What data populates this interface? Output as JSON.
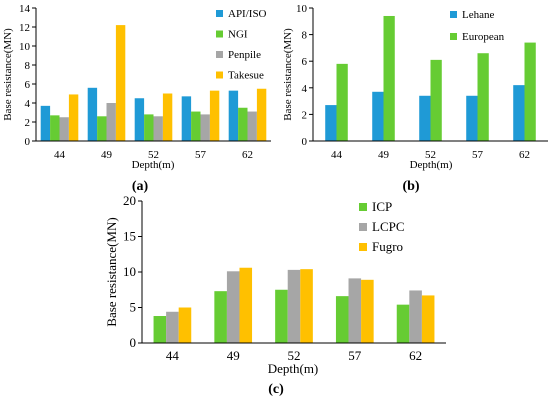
{
  "figure": {
    "panel_labels": [
      "(a)",
      "(b)",
      "(c)"
    ]
  },
  "colors": {
    "API/ISO": "#1f9ad6",
    "NGI": "#66cc33",
    "Penpile": "#a6a6a6",
    "Takesue": "#ffc000",
    "Lehane": "#1f9ad6",
    "European": "#66cc33",
    "ICP": "#66cc33",
    "LCPC": "#a6a6a6",
    "Fugro": "#ffc000",
    "axis": "#000000",
    "background": "#ffffff"
  },
  "chart_data": [
    {
      "type": "bar",
      "panel": "(a)",
      "xlabel": "Depth(m)",
      "ylabel": "Base resistance(MN)",
      "categories": [
        "44",
        "49",
        "52",
        "57",
        "62"
      ],
      "ylim": [
        0,
        14
      ],
      "yticks": [
        0,
        2,
        4,
        6,
        8,
        10,
        12,
        14
      ],
      "grid": false,
      "legend_position": "top-right",
      "series": [
        {
          "name": "API/ISO",
          "values": [
            3.7,
            5.6,
            4.5,
            4.7,
            5.3
          ]
        },
        {
          "name": "NGI",
          "values": [
            2.7,
            2.6,
            2.8,
            3.1,
            3.5
          ]
        },
        {
          "name": "Penpile",
          "values": [
            2.5,
            4.0,
            2.6,
            2.8,
            3.1
          ]
        },
        {
          "name": "Takesue",
          "values": [
            4.9,
            12.2,
            5.0,
            5.3,
            5.5
          ]
        }
      ]
    },
    {
      "type": "bar",
      "panel": "(b)",
      "xlabel": "Depth(m)",
      "ylabel": "Base resistance(MN)",
      "categories": [
        "44",
        "49",
        "52",
        "57",
        "62"
      ],
      "ylim": [
        0,
        10
      ],
      "yticks": [
        0,
        2,
        4,
        6,
        8,
        10
      ],
      "grid": false,
      "legend_position": "top-right",
      "series": [
        {
          "name": "Lehane",
          "values": [
            2.7,
            3.7,
            3.4,
            3.4,
            4.2
          ]
        },
        {
          "name": "European",
          "values": [
            5.8,
            9.4,
            6.1,
            6.6,
            7.4
          ]
        }
      ]
    },
    {
      "type": "bar",
      "panel": "(c)",
      "xlabel": "Depth(m)",
      "ylabel": "Base resistance(MN)",
      "categories": [
        "44",
        "49",
        "52",
        "57",
        "62"
      ],
      "ylim": [
        0,
        20
      ],
      "yticks": [
        0,
        5,
        10,
        15,
        20
      ],
      "grid": false,
      "legend_position": "top-right",
      "series": [
        {
          "name": "ICP",
          "values": [
            3.8,
            7.3,
            7.5,
            6.6,
            5.4
          ]
        },
        {
          "name": "LCPC",
          "values": [
            4.4,
            10.1,
            10.3,
            9.1,
            7.4
          ]
        },
        {
          "name": "Fugro",
          "values": [
            5.0,
            10.6,
            10.4,
            8.9,
            6.7
          ]
        }
      ]
    }
  ]
}
